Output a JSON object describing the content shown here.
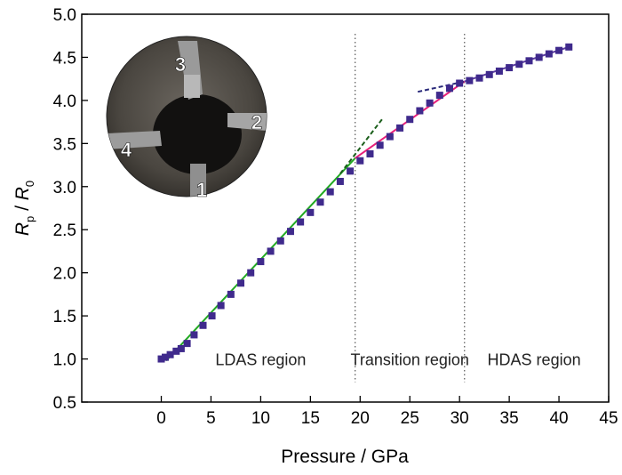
{
  "chart_data": {
    "type": "scatter",
    "title": "",
    "xlabel": "Pressure / GPa",
    "ylabel_main": "R",
    "ylabel_sub_num": "p",
    "ylabel_sep": " / ",
    "ylabel_den": "R",
    "ylabel_sub_den": "0",
    "xlim": [
      -8,
      45
    ],
    "ylim": [
      0.5,
      5.0
    ],
    "x_ticks": [
      0,
      5,
      10,
      15,
      20,
      25,
      30,
      35,
      40,
      45
    ],
    "y_ticks": [
      0.5,
      1.0,
      1.5,
      2.0,
      2.5,
      3.0,
      3.5,
      4.0,
      4.5,
      5.0
    ],
    "x_tick_labels": [
      "0",
      "5",
      "10",
      "15",
      "20",
      "25",
      "30",
      "35",
      "40",
      "45"
    ],
    "y_tick_labels": [
      "0.5",
      "1.0",
      "1.5",
      "2.0",
      "2.5",
      "3.0",
      "3.5",
      "4.0",
      "4.5",
      "5.0"
    ],
    "grid": false,
    "marker_color": "#3f2a8c",
    "series": [
      {
        "x": [
          0.0,
          0.4,
          0.9,
          1.5,
          2.0,
          2.6,
          3.3,
          4.2,
          5.1,
          6.0,
          7.0,
          8.0,
          9.0,
          10.0,
          11.0,
          12.0,
          13.0,
          14.0,
          15.0,
          16.0,
          17.0,
          18.0,
          19.0,
          20.0,
          21.0,
          22.0,
          23.0,
          24.0,
          25.0,
          26.0,
          27.0,
          28.0,
          29.0,
          30.0,
          31.0,
          32.0,
          33.0,
          34.0,
          35.0,
          36.0,
          37.0,
          38.0,
          39.0,
          40.0,
          41.0
        ],
        "y": [
          1.0,
          1.02,
          1.05,
          1.09,
          1.12,
          1.18,
          1.28,
          1.39,
          1.5,
          1.62,
          1.75,
          1.88,
          2.0,
          2.13,
          2.25,
          2.37,
          2.48,
          2.59,
          2.7,
          2.82,
          2.94,
          3.06,
          3.18,
          3.3,
          3.38,
          3.48,
          3.58,
          3.68,
          3.78,
          3.88,
          3.97,
          4.06,
          4.14,
          4.2,
          4.23,
          4.26,
          4.3,
          4.34,
          4.38,
          4.42,
          4.46,
          4.5,
          4.54,
          4.58,
          4.62
        ]
      }
    ],
    "fit_lines": [
      {
        "color": "#22aa22",
        "style": "solid",
        "x": [
          0.5,
          19.5
        ],
        "y": [
          0.98,
          3.33
        ]
      },
      {
        "color": "#1a5e1a",
        "style": "dashed",
        "x": [
          18.0,
          22.2
        ],
        "y": [
          3.15,
          3.78
        ]
      },
      {
        "color": "#e8207a",
        "style": "solid",
        "x": [
          19.5,
          30.5
        ],
        "y": [
          3.33,
          4.22
        ]
      },
      {
        "color": "#2a2a7a",
        "style": "dashed",
        "x": [
          25.8,
          30.5
        ],
        "y": [
          4.1,
          4.22
        ]
      },
      {
        "color": "#5a3aa0",
        "style": "solid",
        "x": [
          30.5,
          41.0
        ],
        "y": [
          4.22,
          4.62
        ]
      }
    ],
    "dividers": [
      19.5,
      30.5
    ],
    "annotations": [
      {
        "text": "LDAS region",
        "x": 10.0,
        "y": 0.93
      },
      {
        "text": "Transition region",
        "x": 25.0,
        "y": 0.93
      },
      {
        "text": "HDAS region",
        "x": 37.5,
        "y": 0.93
      }
    ],
    "inset_labels": [
      "3",
      "2",
      "4",
      "1"
    ]
  }
}
